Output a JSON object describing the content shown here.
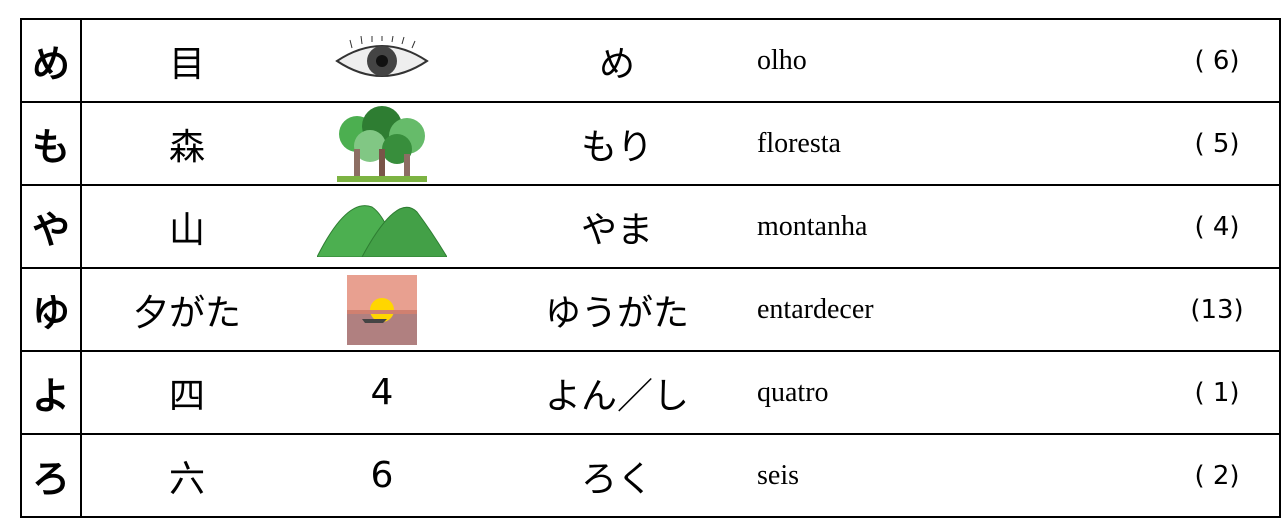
{
  "rows": [
    {
      "kana": "め",
      "kanji": "目",
      "reading": "め",
      "meaning": "olho",
      "count": "( 6)"
    },
    {
      "kana": "も",
      "kanji": "森",
      "reading": "もり",
      "meaning": "floresta",
      "count": "( 5)"
    },
    {
      "kana": "や",
      "kanji": "山",
      "reading": "やま",
      "meaning": "montanha",
      "count": "( 4)"
    },
    {
      "kana": "ゆ",
      "kanji": "夕がた",
      "reading": "ゆうがた",
      "meaning": "entardecer",
      "count": "(13)"
    },
    {
      "kana": "よ",
      "kanji": "四",
      "picture": "4",
      "reading": "よん／し",
      "meaning": "quatro",
      "count": "( 1)"
    },
    {
      "kana": "ろ",
      "kanji": "六",
      "picture": "6",
      "reading": "ろく",
      "meaning": "seis",
      "count": "( 2)"
    }
  ]
}
